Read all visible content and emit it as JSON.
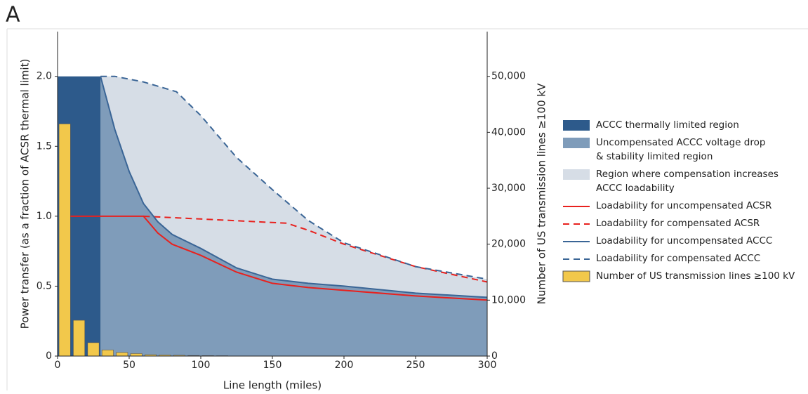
{
  "panel_label": "A",
  "chart_data": {
    "type": "combo",
    "xlabel": "Line length (miles)",
    "ylabel": "Power transfer (as a fraction of ACSR thermal limit)",
    "y2label": "Number of US transmission lines ≥100 kV",
    "xlim": [
      0,
      300
    ],
    "ylim": [
      0,
      2.32
    ],
    "y2lim": [
      0,
      58000
    ],
    "xticks": [
      0,
      50,
      100,
      150,
      200,
      250,
      300
    ],
    "yticks": [
      0,
      0.5,
      {
        "value": 1,
        "label": "1.0"
      },
      1.5,
      {
        "value": 2,
        "label": "2.0"
      }
    ],
    "y2ticks": [
      0,
      {
        "value": 10000,
        "label": "10,000"
      },
      {
        "value": 20000,
        "label": "20,000"
      },
      {
        "value": 30000,
        "label": "30,000"
      },
      {
        "value": 40000,
        "label": "40,000"
      },
      {
        "value": 50000,
        "label": "50,000"
      }
    ],
    "series": [
      {
        "name": "ACCC thermally limited region",
        "kind": "area",
        "color": "#2d5a8b",
        "x": [
          0,
          30
        ],
        "values": [
          2,
          2
        ]
      },
      {
        "name": "Uncompensated ACCC voltage drop\n& stability limited region",
        "kind": "area",
        "color": "#7f9cba",
        "x": [
          30,
          40,
          50,
          60,
          70,
          80,
          100,
          125,
          150,
          175,
          200,
          250,
          300
        ],
        "values": [
          2,
          1.62,
          1.32,
          1.09,
          0.96,
          0.87,
          0.77,
          0.63,
          0.55,
          0.52,
          0.5,
          0.45,
          0.42
        ]
      },
      {
        "name": "Region where compensation increases\nACCC loadability",
        "kind": "area",
        "color": "#d6dde6",
        "x": [
          30,
          40,
          50,
          60,
          70,
          83,
          100,
          125,
          150,
          175,
          200,
          250,
          300
        ],
        "values": [
          2,
          2,
          1.98,
          1.96,
          1.93,
          1.89,
          1.72,
          1.42,
          1.19,
          0.97,
          0.81,
          0.64,
          0.55
        ]
      },
      {
        "name": "Loadability for uncompensated ACSR",
        "kind": "line",
        "dash": false,
        "color": "#e8211e",
        "x": [
          9,
          60,
          70,
          80,
          100,
          125,
          150,
          175,
          200,
          250,
          300
        ],
        "values": [
          1,
          1,
          0.88,
          0.8,
          0.72,
          0.6,
          0.52,
          0.49,
          0.47,
          0.43,
          0.4
        ]
      },
      {
        "name": "Loadability for compensated ACSR",
        "kind": "line",
        "dash": true,
        "color": "#e8211e",
        "x": [
          60,
          100,
          160,
          175,
          200,
          250,
          300
        ],
        "values": [
          1,
          0.98,
          0.95,
          0.9,
          0.8,
          0.64,
          0.53
        ]
      },
      {
        "name": "Loadability for uncompensated ACCC",
        "kind": "line",
        "dash": false,
        "color": "#3a6596",
        "x": [
          30,
          40,
          50,
          60,
          70,
          80,
          100,
          125,
          150,
          175,
          200,
          250,
          300
        ],
        "values": [
          2,
          1.62,
          1.32,
          1.09,
          0.96,
          0.87,
          0.77,
          0.63,
          0.55,
          0.52,
          0.5,
          0.45,
          0.42
        ]
      },
      {
        "name": "Loadability for compensated ACCC",
        "kind": "line",
        "dash": true,
        "color": "#3a6596",
        "x": [
          30,
          40,
          50,
          60,
          70,
          83,
          100,
          125,
          150,
          175,
          200,
          250,
          300
        ],
        "values": [
          2,
          2,
          1.98,
          1.96,
          1.93,
          1.89,
          1.72,
          1.42,
          1.19,
          0.97,
          0.81,
          0.64,
          0.55
        ]
      },
      {
        "name": "Number of US transmission lines ≥100 kV",
        "kind": "bar",
        "axis": "y2",
        "color": "#f2c84b",
        "bins": [
          0,
          10,
          20,
          30,
          40,
          50,
          60,
          70,
          80,
          90,
          100,
          110,
          120
        ],
        "values": [
          41500,
          6400,
          2400,
          1100,
          650,
          450,
          250,
          200,
          150,
          100,
          80,
          60
        ]
      }
    ]
  }
}
